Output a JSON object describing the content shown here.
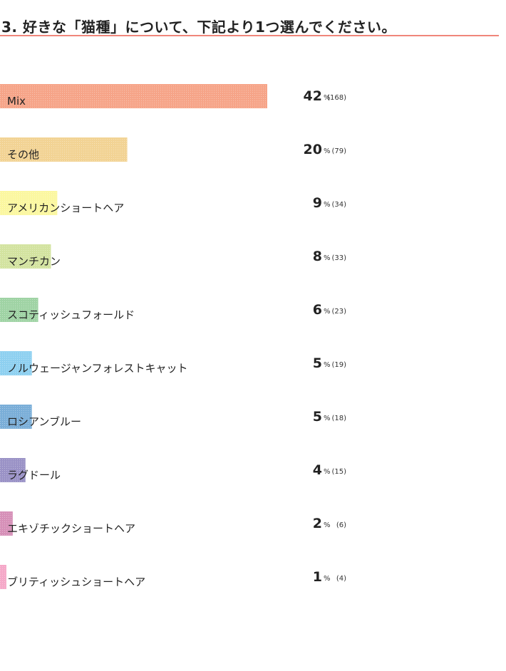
{
  "title": "3. 好きな「猫種」について、下記より1つ選んでください。",
  "colors": {
    "title_rule": "#f0867a",
    "text": "#222222"
  },
  "chart_data": {
    "type": "bar",
    "orientation": "horizontal",
    "grid": false,
    "categories": [
      "Mix",
      "その他",
      "アメリカンショートヘア",
      "マンチカン",
      "スコティッシュフォールド",
      "ノルウェージャンフォレストキャット",
      "ロシアンブルー",
      "ラグドール",
      "エキゾチックショートヘア",
      "ブリティッシュショートヘア"
    ],
    "values": [
      42,
      20,
      9,
      8,
      6,
      5,
      5,
      4,
      2,
      1
    ],
    "counts": [
      "(168)",
      "(79)",
      "(34)",
      "(33)",
      "(23)",
      "(19)",
      "(18)",
      "(15)",
      "(6)",
      "(4)"
    ],
    "percent_sign": "%",
    "bar_colors": [
      "#f6a488",
      "#f2d394",
      "#fbf7a0",
      "#d3e3a0",
      "#9fd3a4",
      "#8ed0f0",
      "#7aaed8",
      "#9a92c6",
      "#d690b8",
      "#f5a8c8"
    ],
    "xlim": [
      0,
      42
    ]
  }
}
